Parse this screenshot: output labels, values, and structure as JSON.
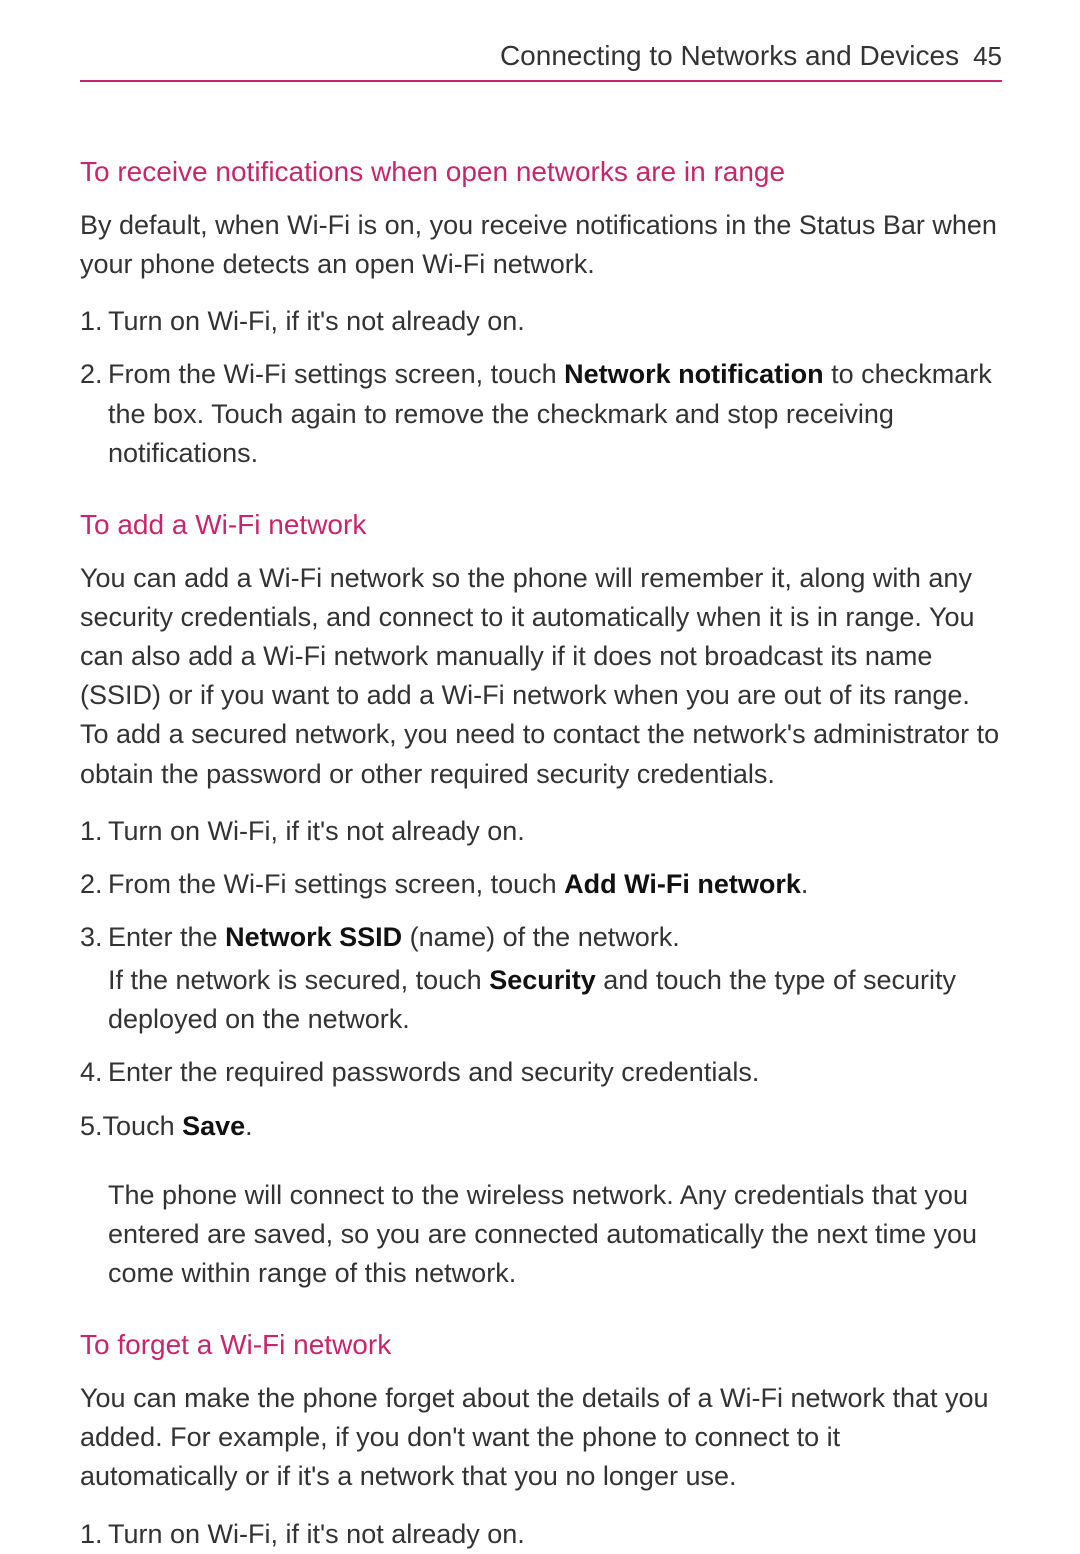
{
  "colors": {
    "accent": "#c7266d",
    "text": "#333333",
    "background": "#ffffff"
  },
  "typography": {
    "body_fontsize_pt": 20,
    "heading_fontsize_pt": 21,
    "header_fontsize_pt": 21
  },
  "header": {
    "title": "Connecting to Networks and Devices",
    "page_number": "45"
  },
  "sections": [
    {
      "heading": "To receive notifications when open networks are in range",
      "intro": "By default, when Wi-Fi is on, you receive notifications in the Status Bar when your phone detects an open Wi-Fi network.",
      "steps": [
        {
          "n": "1.",
          "runs": [
            {
              "t": "Turn on Wi-Fi, if it's not already on."
            }
          ]
        },
        {
          "n": "2.",
          "runs": [
            {
              "t": "From the Wi-Fi settings screen, touch "
            },
            {
              "t": "Network notification",
              "b": true
            },
            {
              "t": " to checkmark the box. Touch again to remove the checkmark and stop receiving notifications."
            }
          ]
        }
      ]
    },
    {
      "heading": "To add a Wi-Fi network",
      "intro": "You can add a Wi-Fi network so the phone will remember it, along with any security credentials, and connect to it automatically when it is in range. You can also add a Wi-Fi network manually if it does not broadcast its name (SSID) or if you want to add a Wi-Fi network when you are out of its range. To add a secured network, you need to contact the network's administrator to obtain the password or other required security credentials.",
      "steps": [
        {
          "n": "1.",
          "runs": [
            {
              "t": "Turn on Wi-Fi, if it's not already on."
            }
          ]
        },
        {
          "n": "2.",
          "runs": [
            {
              "t": "From the Wi-Fi settings screen, touch "
            },
            {
              "t": "Add Wi-Fi network",
              "b": true
            },
            {
              "t": "."
            }
          ]
        },
        {
          "n": "3.",
          "runs": [
            {
              "t": "Enter the "
            },
            {
              "t": "Network SSID",
              "b": true
            },
            {
              "t": " (name) of the network."
            }
          ],
          "sub_runs": [
            {
              "t": "If the network is secured, touch "
            },
            {
              "t": "Security",
              "b": true
            },
            {
              "t": " and touch the type of security deployed on the network."
            }
          ]
        },
        {
          "n": "4.",
          "runs": [
            {
              "t": "Enter the required passwords and security credentials."
            }
          ]
        },
        {
          "n": "5.",
          "no_space": true,
          "runs": [
            {
              "t": "Touch "
            },
            {
              "t": "Save",
              "b": true
            },
            {
              "t": "."
            }
          ]
        }
      ],
      "trailing_block": "The phone will connect to the wireless network. Any credentials that you entered are saved, so you are connected automatically the next time you come within range of this network."
    },
    {
      "heading": "To forget a Wi-Fi network",
      "intro": "You can make the phone forget about the details of a Wi-Fi network that you added. For example, if you don't want the phone to connect to it automatically or if it's a network that you no longer use.",
      "steps": [
        {
          "n": "1.",
          "runs": [
            {
              "t": "Turn on Wi-Fi, if it's not already on."
            }
          ]
        }
      ]
    }
  ]
}
